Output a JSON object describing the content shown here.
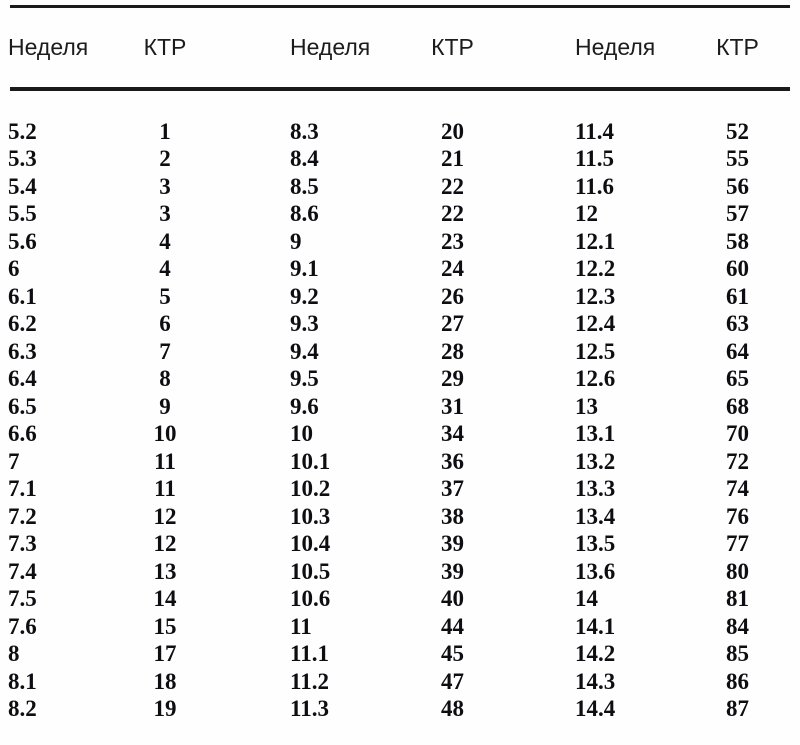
{
  "page": {
    "background": "#fefefe",
    "description_colors": {
      "rule": "#1a1a1a",
      "header_text": "#1c1c1c",
      "data_text": "#0e0e12"
    }
  },
  "table": {
    "column_headers": [
      "Неделя",
      "КТР",
      "Неделя",
      "КТР",
      "Неделя",
      "КТР"
    ],
    "rows": [
      [
        "5.2",
        "1",
        "8.3",
        "20",
        "11.4",
        "52"
      ],
      [
        "5.3",
        "2",
        "8.4",
        "21",
        "11.5",
        "55"
      ],
      [
        "5.4",
        "3",
        "8.5",
        "22",
        "11.6",
        "56"
      ],
      [
        "5.5",
        "3",
        "8.6",
        "22",
        "12",
        "57"
      ],
      [
        "5.6",
        "4",
        "9",
        "23",
        "12.1",
        "58"
      ],
      [
        "6",
        "4",
        "9.1",
        "24",
        "12.2",
        "60"
      ],
      [
        "6.1",
        "5",
        "9.2",
        "26",
        "12.3",
        "61"
      ],
      [
        "6.2",
        "6",
        "9.3",
        "27",
        "12.4",
        "63"
      ],
      [
        "6.3",
        "7",
        "9.4",
        "28",
        "12.5",
        "64"
      ],
      [
        "6.4",
        "8",
        "9.5",
        "29",
        "12.6",
        "65"
      ],
      [
        "6.5",
        "9",
        "9.6",
        "31",
        "13",
        "68"
      ],
      [
        "6.6",
        "10",
        "10",
        "34",
        "13.1",
        "70"
      ],
      [
        "7",
        "11",
        "10.1",
        "36",
        "13.2",
        "72"
      ],
      [
        "7.1",
        "11",
        "10.2",
        "37",
        "13.3",
        "74"
      ],
      [
        "7.2",
        "12",
        "10.3",
        "38",
        "13.4",
        "76"
      ],
      [
        "7.3",
        "12",
        "10.4",
        "39",
        "13.5",
        "77"
      ],
      [
        "7.4",
        "13",
        "10.5",
        "39",
        "13.6",
        "80"
      ],
      [
        "7.5",
        "14",
        "10.6",
        "40",
        "14",
        "81"
      ],
      [
        "7.6",
        "15",
        "11",
        "44",
        "14.1",
        "84"
      ],
      [
        "8",
        "17",
        "11.1",
        "45",
        "14.2",
        "85"
      ],
      [
        "8.1",
        "18",
        "11.2",
        "47",
        "14.3",
        "86"
      ],
      [
        "8.2",
        "19",
        "11.3",
        "48",
        "14.4",
        "87"
      ]
    ]
  }
}
